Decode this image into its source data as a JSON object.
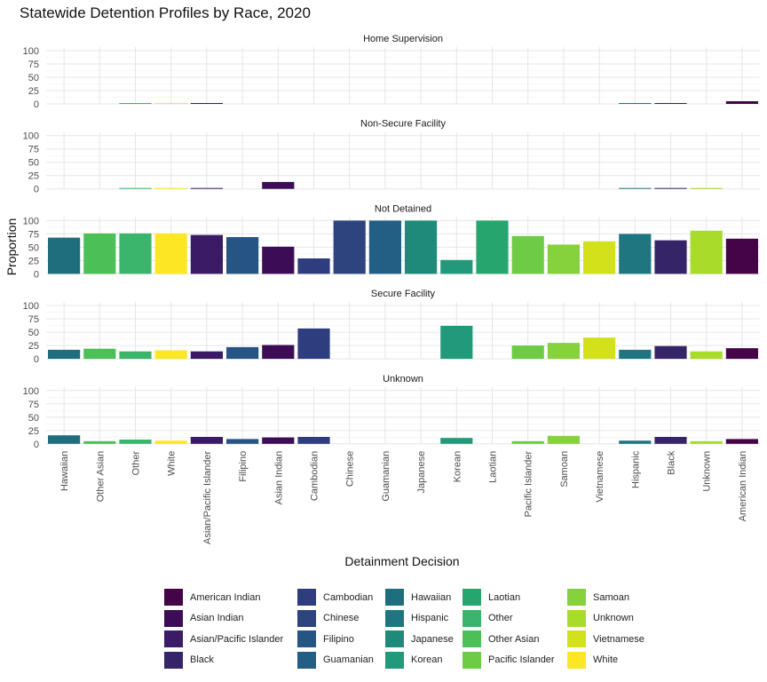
{
  "chart_data": {
    "type": "bar",
    "title": "Statewide Detention Profiles by Race, 2020",
    "xlabel": "Detainment Decision",
    "ylabel": "Proportion",
    "ylim": [
      0,
      100
    ],
    "yticks": [
      0,
      25,
      50,
      75,
      100
    ],
    "grid": true,
    "legend_placement": "bottom",
    "categories": [
      "Hawaiian",
      "Other Asian",
      "Other",
      "White",
      "Asian/Pacific Islander",
      "Filipino",
      "Asian Indian",
      "Cambodian",
      "Chinese",
      "Guamanian",
      "Japanese",
      "Korean",
      "Laotian",
      "Pacific Islander",
      "Samoan",
      "Vietnamese",
      "Hispanic",
      "Black",
      "Unknown",
      "American Indian"
    ],
    "colors": {
      "Hawaiian": "#1f6e7d",
      "Other Asian": "#4cc056",
      "Other": "#3bb56b",
      "White": "#fde725",
      "Asian/Pacific Islander": "#3b1a66",
      "Filipino": "#265483",
      "Asian Indian": "#3c0c56",
      "Cambodian": "#2e3d7e",
      "Chinese": "#2e447f",
      "Guamanian": "#235f85",
      "Japanese": "#1f8a7a",
      "Korean": "#22997a",
      "Laotian": "#27a56e",
      "Pacific Islander": "#6dcb45",
      "Samoan": "#86d23c",
      "Vietnamese": "#d2e11a",
      "Hispanic": "#1f7680",
      "Black": "#362468",
      "Unknown": "#a8db2a",
      "American Indian": "#440447"
    },
    "panels": [
      {
        "name": "Home Supervision",
        "values": [
          null,
          null,
          1,
          1,
          1,
          null,
          null,
          null,
          null,
          null,
          null,
          null,
          null,
          null,
          null,
          null,
          1,
          1,
          null,
          5
        ]
      },
      {
        "name": "Non-Secure Facility",
        "values": [
          null,
          null,
          1,
          1,
          1,
          null,
          13,
          null,
          null,
          null,
          null,
          null,
          null,
          null,
          null,
          null,
          1,
          1,
          1,
          null
        ]
      },
      {
        "name": "Not Detained",
        "values": [
          68,
          76,
          76,
          76,
          73,
          69,
          51,
          29,
          100,
          100,
          100,
          26,
          100,
          71,
          55,
          61,
          75,
          63,
          81,
          66
        ]
      },
      {
        "name": "Secure Facility",
        "values": [
          17,
          19,
          14,
          16,
          14,
          22,
          26,
          57,
          null,
          null,
          null,
          62,
          null,
          25,
          30,
          40,
          17,
          24,
          14,
          20
        ]
      },
      {
        "name": "Unknown",
        "values": [
          16,
          5,
          8,
          6,
          13,
          9,
          12,
          13,
          null,
          null,
          null,
          11,
          null,
          5,
          15,
          null,
          6,
          13,
          5,
          9
        ]
      }
    ],
    "legend": [
      "American Indian",
      "Asian Indian",
      "Asian/Pacific Islander",
      "Black",
      "Cambodian",
      "Chinese",
      "Filipino",
      "Guamanian",
      "Hawaiian",
      "Hispanic",
      "Japanese",
      "Korean",
      "Laotian",
      "Other",
      "Other Asian",
      "Pacific Islander",
      "Samoan",
      "Unknown",
      "Vietnamese",
      "White"
    ]
  }
}
